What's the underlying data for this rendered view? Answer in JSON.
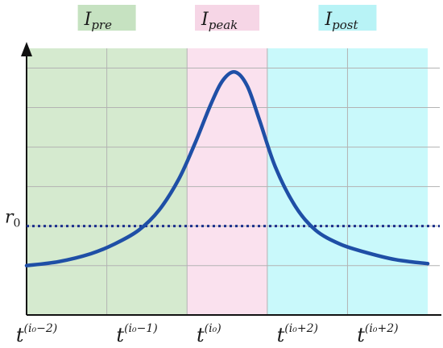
{
  "chart_data": {
    "type": "line",
    "title": "",
    "xlabel": "",
    "ylabel": "",
    "regions": [
      {
        "base": "I",
        "sub": "pre",
        "color": "#d5eacf",
        "label_bg": "#c6e2c1",
        "x_from": 0,
        "x_to": 2
      },
      {
        "base": "I",
        "sub": "peak",
        "color": "#fae1ee",
        "label_bg": "#f6d6e6",
        "x_from": 2,
        "x_to": 3
      },
      {
        "base": "I",
        "sub": "post",
        "color": "#c9f9fb",
        "label_bg": "#b8f3f6",
        "x_from": 3,
        "x_to": 5
      }
    ],
    "x_ticks": [
      {
        "x": 0.25,
        "base": "t",
        "sup": "(i₀−2)"
      },
      {
        "x": 1.5,
        "base": "t",
        "sup": "(i₀−1)"
      },
      {
        "x": 2.5,
        "base": "t",
        "sup": "(i₀)"
      },
      {
        "x": 3.5,
        "base": "t",
        "sup": "(i₀+2)"
      },
      {
        "x": 4.5,
        "base": "t",
        "sup": "(i₀+2)"
      }
    ],
    "reference_line": {
      "y": 0.2,
      "base": "r",
      "sub": "0",
      "color": "#1a2f8c"
    },
    "xlim": [
      0,
      5.15
    ],
    "ylim": [
      -0.25,
      1.1
    ],
    "curve": {
      "color": "#1f4fa6",
      "x": [
        0,
        0.4,
        0.8,
        1.1,
        1.4,
        1.65,
        1.9,
        2.1,
        2.3,
        2.45,
        2.6,
        2.75,
        2.9,
        3.1,
        3.35,
        3.6,
        3.9,
        4.2,
        4.6,
        5.0
      ],
      "y": [
        0.0,
        0.02,
        0.06,
        0.11,
        0.18,
        0.28,
        0.44,
        0.62,
        0.82,
        0.94,
        0.98,
        0.91,
        0.74,
        0.5,
        0.3,
        0.18,
        0.11,
        0.07,
        0.03,
        0.01
      ]
    },
    "grid": true,
    "grid_y": [
      0,
      0.2,
      0.4,
      0.6,
      0.8,
      1.0
    ],
    "grid_x": [
      1,
      2,
      3,
      4
    ]
  }
}
